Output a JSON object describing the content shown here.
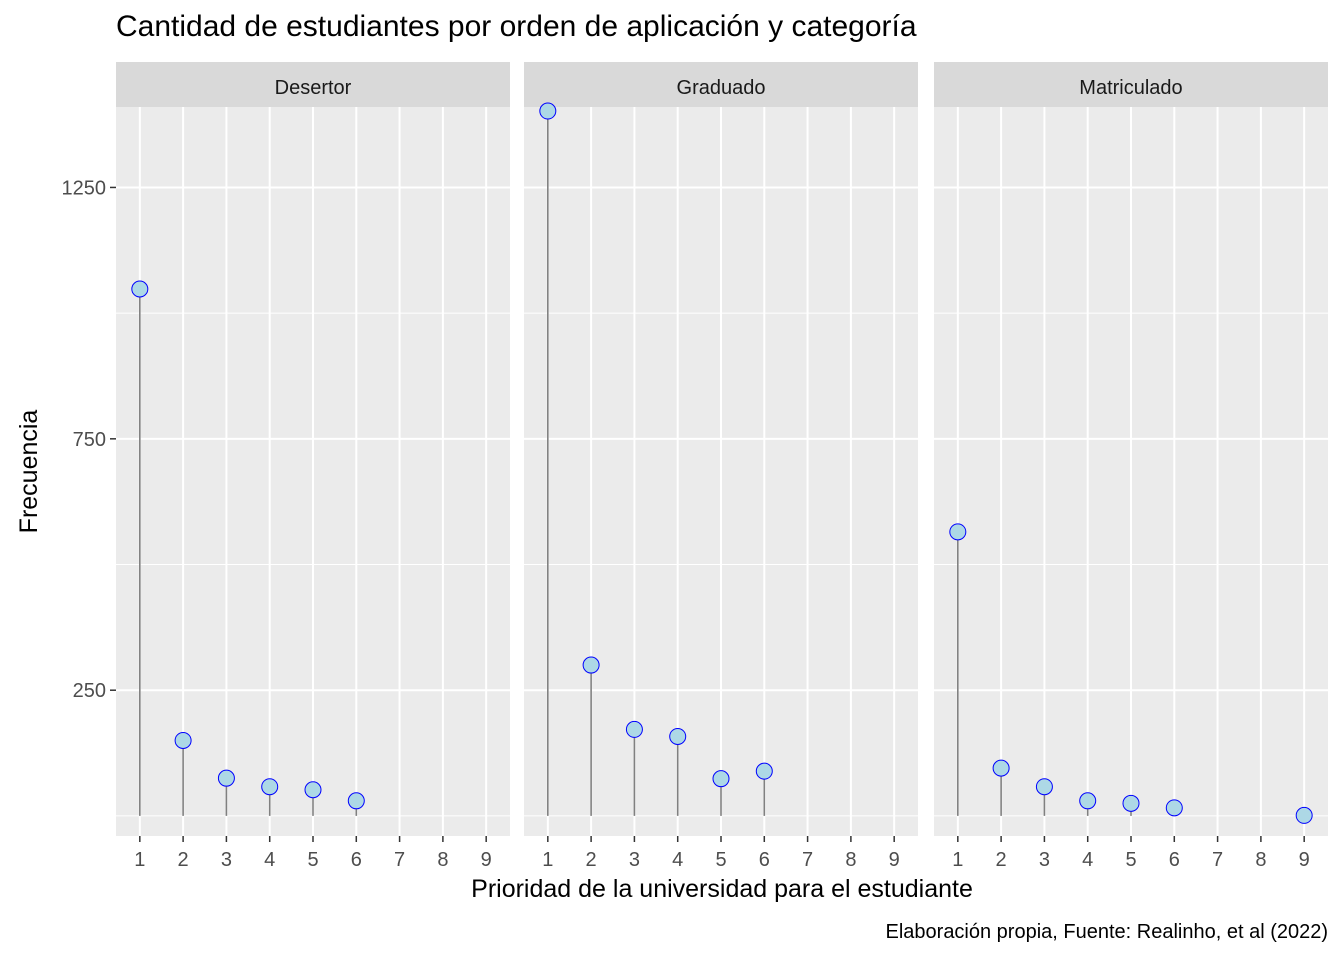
{
  "chart_data": {
    "type": "lollipop",
    "title": "Cantidad de estudiantes por orden de aplicación y categoría",
    "xlabel": "Prioridad de la universidad para el estudiante",
    "ylabel": "Frecuencia",
    "caption": "Elaboración propia, Fuente: Realinho, et al (2022)",
    "x_ticks": [
      1,
      2,
      3,
      4,
      5,
      6,
      7,
      8,
      9
    ],
    "y_ticks": [
      250,
      750,
      1250
    ],
    "ylim": [
      -40,
      1410
    ],
    "xlim": [
      0.45,
      9.55
    ],
    "grid": true,
    "colors": {
      "panel_bg": "#EBEBEB",
      "strip_bg": "#D9D9D9",
      "grid": "#FFFFFF",
      "point_fill": "#ADD8E6",
      "point_stroke": "#0000FF",
      "stem": "#808080",
      "tick_text": "#4D4D4D"
    },
    "facets": [
      {
        "name": "Desertor",
        "points": [
          {
            "x": 1,
            "y": 1048
          },
          {
            "x": 2,
            "y": 150
          },
          {
            "x": 3,
            "y": 75
          },
          {
            "x": 4,
            "y": 58
          },
          {
            "x": 5,
            "y": 52
          },
          {
            "x": 6,
            "y": 30
          }
        ]
      },
      {
        "name": "Graduado",
        "points": [
          {
            "x": 1,
            "y": 1402
          },
          {
            "x": 2,
            "y": 300
          },
          {
            "x": 3,
            "y": 172
          },
          {
            "x": 4,
            "y": 158
          },
          {
            "x": 5,
            "y": 74
          },
          {
            "x": 6,
            "y": 89
          }
        ]
      },
      {
        "name": "Matriculado",
        "points": [
          {
            "x": 1,
            "y": 565
          },
          {
            "x": 2,
            "y": 95
          },
          {
            "x": 3,
            "y": 58
          },
          {
            "x": 4,
            "y": 30
          },
          {
            "x": 5,
            "y": 25
          },
          {
            "x": 6,
            "y": 16
          },
          {
            "x": 9,
            "y": 1
          }
        ]
      }
    ]
  }
}
